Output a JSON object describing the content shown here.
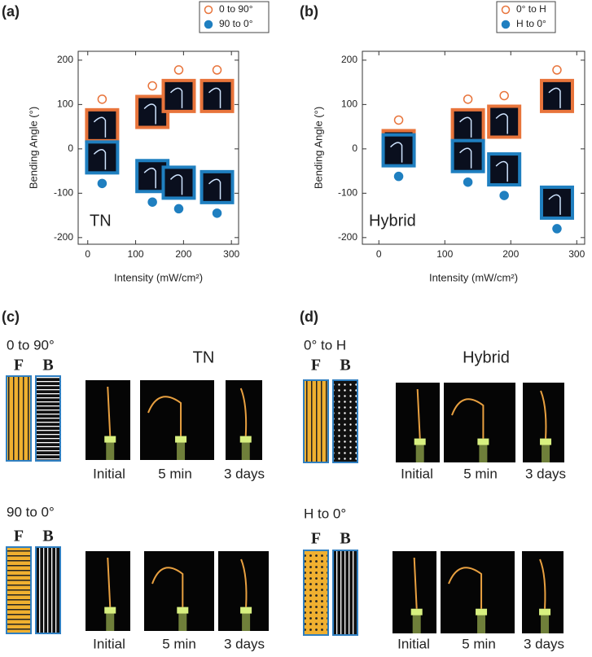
{
  "chart_data": [
    {
      "type": "scatter",
      "panel": "(a)",
      "annotation": "TN",
      "x_label": "Intensity (mW/cm²)",
      "y_label": "Bending Angle (°)",
      "xlim": [
        -20,
        315
      ],
      "ylim": [
        -215,
        220
      ],
      "xticks": [
        0,
        100,
        200,
        300
      ],
      "yticks": [
        -200,
        -100,
        0,
        100,
        200
      ],
      "series": [
        {
          "name": "0 to 90°",
          "color": "#e8743b",
          "marker": "open",
          "x": [
            30,
            135,
            190,
            270
          ],
          "values": [
            112,
            142,
            178,
            178
          ]
        },
        {
          "name": "90 to 0°",
          "color": "#1f7fc0",
          "marker": "filled",
          "x": [
            30,
            135,
            190,
            270
          ],
          "values": [
            -78,
            -120,
            -135,
            -145
          ]
        }
      ]
    },
    {
      "type": "scatter",
      "panel": "(b)",
      "annotation": "Hybrid",
      "x_label": "Intensity (mW/cm²)",
      "y_label": "Bending Angle (°)",
      "xlim": [
        -25,
        312
      ],
      "ylim": [
        -215,
        220
      ],
      "xticks": [
        0,
        100,
        200,
        300
      ],
      "yticks": [
        -200,
        -100,
        0,
        100,
        200
      ],
      "series": [
        {
          "name": "0° to H",
          "color": "#e8743b",
          "marker": "open",
          "x": [
            30,
            135,
            190,
            270
          ],
          "values": [
            65,
            112,
            120,
            178
          ]
        },
        {
          "name": "H to 0°",
          "color": "#1f7fc0",
          "marker": "filled",
          "x": [
            30,
            135,
            190,
            270
          ],
          "values": [
            -62,
            -75,
            -105,
            -180
          ]
        }
      ]
    }
  ],
  "panels": [
    {
      "label": "(c)",
      "title": "TN",
      "rows": [
        {
          "name": "0 to 90°",
          "front": "F",
          "back": "B",
          "captions": [
            "Initial",
            "5 min",
            "3 days"
          ]
        },
        {
          "name": "90 to 0°",
          "front": "F",
          "back": "B",
          "captions": [
            "Initial",
            "5 min",
            "3 days"
          ]
        }
      ]
    },
    {
      "label": "(d)",
      "title": "Hybrid",
      "rows": [
        {
          "name": "0° to H",
          "front": "F",
          "back": "B",
          "captions": [
            "Initial",
            "5 min",
            "3 days"
          ]
        },
        {
          "name": "H to 0°",
          "front": "F",
          "back": "B",
          "captions": [
            "Initial",
            "5 min",
            "3 days"
          ]
        }
      ]
    }
  ]
}
